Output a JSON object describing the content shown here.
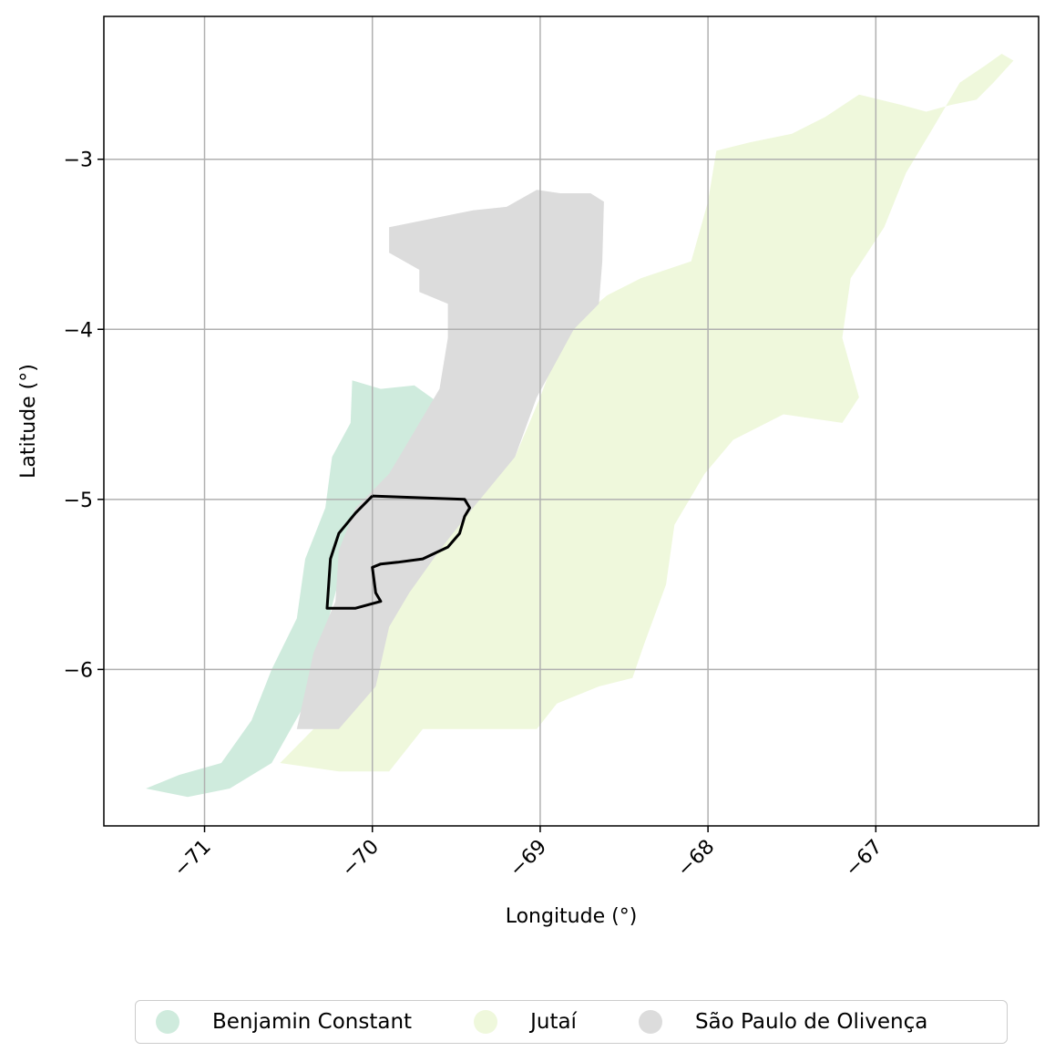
{
  "map": {
    "xlabel": "Longitude (°)",
    "ylabel": "Latitude (°)",
    "xlim": [
      -71.6,
      -66.03
    ],
    "ylim": [
      -6.92,
      -2.16
    ],
    "x_ticks": [
      -71,
      -70,
      -69,
      -68,
      -67
    ],
    "x_tick_labels": [
      "−71",
      "−70",
      "−69",
      "−68",
      "−67"
    ],
    "y_ticks": [
      -3,
      -4,
      -5,
      -6
    ],
    "y_tick_labels": [
      "−3",
      "−4",
      "−5",
      "−6"
    ],
    "grid": true,
    "regions": [
      {
        "name": "Benjamin Constant",
        "color": "#cfebdd",
        "coords": [
          [
            -71.35,
            -6.7
          ],
          [
            -71.1,
            -6.75
          ],
          [
            -70.85,
            -6.7
          ],
          [
            -70.6,
            -6.55
          ],
          [
            -70.4,
            -6.2
          ],
          [
            -70.3,
            -5.85
          ],
          [
            -70.22,
            -5.55
          ],
          [
            -70.15,
            -5.3
          ],
          [
            -70.05,
            -5.0
          ],
          [
            -69.85,
            -4.85
          ],
          [
            -69.7,
            -4.7
          ],
          [
            -69.58,
            -4.45
          ],
          [
            -69.75,
            -4.33
          ],
          [
            -69.95,
            -4.35
          ],
          [
            -70.12,
            -4.3
          ],
          [
            -70.13,
            -4.55
          ],
          [
            -70.24,
            -4.75
          ],
          [
            -70.28,
            -5.05
          ],
          [
            -70.4,
            -5.35
          ],
          [
            -70.45,
            -5.7
          ],
          [
            -70.6,
            -6.0
          ],
          [
            -70.72,
            -6.3
          ],
          [
            -70.9,
            -6.55
          ],
          [
            -71.15,
            -6.62
          ]
        ]
      },
      {
        "name": "Jutaí",
        "color": "#eff8dc",
        "coords": [
          [
            -70.55,
            -6.55
          ],
          [
            -70.2,
            -6.6
          ],
          [
            -69.9,
            -6.6
          ],
          [
            -69.7,
            -6.35
          ],
          [
            -69.3,
            -6.35
          ],
          [
            -69.02,
            -6.35
          ],
          [
            -68.9,
            -6.2
          ],
          [
            -68.65,
            -6.1
          ],
          [
            -68.45,
            -6.05
          ],
          [
            -68.38,
            -5.85
          ],
          [
            -68.25,
            -5.5
          ],
          [
            -68.2,
            -5.15
          ],
          [
            -68.02,
            -4.85
          ],
          [
            -67.85,
            -4.65
          ],
          [
            -67.55,
            -4.5
          ],
          [
            -67.2,
            -4.55
          ],
          [
            -67.1,
            -4.4
          ],
          [
            -67.2,
            -4.05
          ],
          [
            -67.15,
            -3.7
          ],
          [
            -66.95,
            -3.4
          ],
          [
            -66.82,
            -3.08
          ],
          [
            -66.68,
            -2.85
          ],
          [
            -66.5,
            -2.55
          ],
          [
            -66.35,
            -2.45
          ],
          [
            -66.25,
            -2.38
          ],
          [
            -66.18,
            -2.42
          ],
          [
            -66.3,
            -2.55
          ],
          [
            -66.4,
            -2.65
          ],
          [
            -66.55,
            -2.68
          ],
          [
            -66.7,
            -2.72
          ],
          [
            -66.85,
            -2.68
          ],
          [
            -67.1,
            -2.62
          ],
          [
            -67.3,
            -2.75
          ],
          [
            -67.5,
            -2.85
          ],
          [
            -67.75,
            -2.9
          ],
          [
            -67.95,
            -2.95
          ],
          [
            -68.0,
            -3.25
          ],
          [
            -68.1,
            -3.6
          ],
          [
            -68.4,
            -3.7
          ],
          [
            -68.6,
            -3.8
          ],
          [
            -68.85,
            -4.0
          ],
          [
            -69.0,
            -4.4
          ],
          [
            -69.15,
            -4.75
          ],
          [
            -69.5,
            -5.05
          ],
          [
            -69.7,
            -5.35
          ],
          [
            -69.9,
            -5.7
          ],
          [
            -70.0,
            -6.05
          ],
          [
            -70.3,
            -6.3
          ]
        ]
      },
      {
        "name": "São Paulo de Olivença",
        "color": "#dcdcdc",
        "coords": [
          [
            -70.45,
            -6.35
          ],
          [
            -70.35,
            -5.9
          ],
          [
            -70.22,
            -5.6
          ],
          [
            -70.2,
            -5.3
          ],
          [
            -70.1,
            -5.05
          ],
          [
            -69.9,
            -4.85
          ],
          [
            -69.75,
            -4.6
          ],
          [
            -69.6,
            -4.35
          ],
          [
            -69.55,
            -4.05
          ],
          [
            -69.55,
            -3.85
          ],
          [
            -69.72,
            -3.78
          ],
          [
            -69.72,
            -3.65
          ],
          [
            -69.9,
            -3.55
          ],
          [
            -69.9,
            -3.4
          ],
          [
            -69.65,
            -3.35
          ],
          [
            -69.4,
            -3.3
          ],
          [
            -69.2,
            -3.28
          ],
          [
            -69.02,
            -3.18
          ],
          [
            -68.88,
            -3.2
          ],
          [
            -68.7,
            -3.2
          ],
          [
            -68.62,
            -3.25
          ],
          [
            -68.63,
            -3.6
          ],
          [
            -68.65,
            -3.85
          ],
          [
            -68.8,
            -4.0
          ],
          [
            -69.02,
            -4.4
          ],
          [
            -69.15,
            -4.75
          ],
          [
            -69.4,
            -5.05
          ],
          [
            -69.6,
            -5.3
          ],
          [
            -69.78,
            -5.55
          ],
          [
            -69.9,
            -5.75
          ],
          [
            -69.98,
            -6.1
          ],
          [
            -70.2,
            -6.35
          ]
        ]
      }
    ],
    "outline": [
      [
        -70.0,
        -4.98
      ],
      [
        -69.45,
        -5.0
      ],
      [
        -69.42,
        -5.05
      ],
      [
        -69.45,
        -5.1
      ],
      [
        -69.48,
        -5.2
      ],
      [
        -69.55,
        -5.28
      ],
      [
        -69.7,
        -5.35
      ],
      [
        -69.85,
        -5.37
      ],
      [
        -69.95,
        -5.38
      ],
      [
        -70.0,
        -5.4
      ],
      [
        -69.98,
        -5.55
      ],
      [
        -69.95,
        -5.6
      ],
      [
        -70.1,
        -5.64
      ],
      [
        -70.27,
        -5.64
      ],
      [
        -70.25,
        -5.35
      ],
      [
        -70.2,
        -5.2
      ],
      [
        -70.1,
        -5.08
      ],
      [
        -70.0,
        -4.98
      ]
    ]
  },
  "legend": {
    "items": [
      {
        "label": "Benjamin Constant",
        "color": "#cfebdd"
      },
      {
        "label": "Jutaí",
        "color": "#eff8dc"
      },
      {
        "label": "São Paulo de Olivença",
        "color": "#dcdcdc"
      }
    ]
  }
}
